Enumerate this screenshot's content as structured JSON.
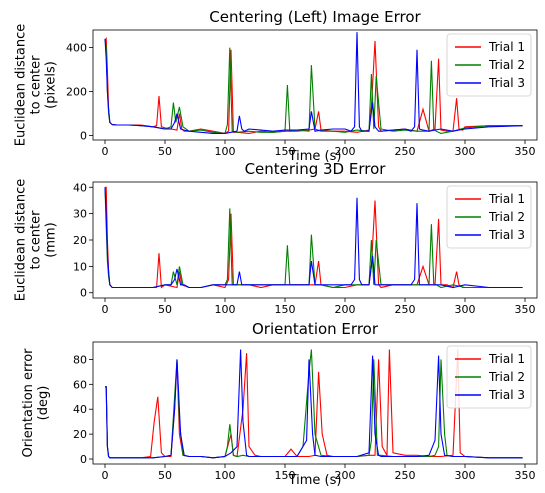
{
  "series_colors": {
    "Trial 1": "#ff0000",
    "Trial 2": "#008000",
    "Trial 3": "#0000ff"
  },
  "chart_data": [
    {
      "type": "line",
      "title": "Centering (Left) Image Error",
      "xlabel": "Time (s)",
      "ylabel": [
        "Euclidean distance",
        "to center",
        "(pixels)"
      ],
      "xlim": [
        -10,
        360
      ],
      "ylim": [
        -20,
        480
      ],
      "xticks": [
        0,
        50,
        100,
        150,
        200,
        250,
        300,
        350
      ],
      "yticks": [
        0,
        200,
        400
      ],
      "legend": "top-right",
      "series": [
        {
          "name": "Trial 1",
          "x": [
            0,
            1,
            2,
            3,
            4,
            6,
            10,
            20,
            30,
            40,
            43,
            45,
            47,
            50,
            55,
            60,
            62,
            64,
            66,
            70,
            75,
            80,
            90,
            100,
            103,
            105,
            107,
            110,
            120,
            130,
            140,
            150,
            160,
            170,
            175,
            178,
            180,
            190,
            200,
            210,
            215,
            220,
            222,
            225,
            228,
            230,
            240,
            250,
            260,
            265,
            270,
            275,
            278,
            280,
            285,
            290,
            293,
            295,
            298,
            300,
            320,
            348
          ],
          "y": [
            430,
            440,
            300,
            120,
            60,
            50,
            48,
            48,
            48,
            40,
            45,
            180,
            40,
            35,
            30,
            25,
            100,
            30,
            20,
            20,
            25,
            30,
            20,
            10,
            20,
            390,
            15,
            15,
            10,
            20,
            15,
            20,
            20,
            25,
            30,
            110,
            25,
            20,
            20,
            15,
            20,
            25,
            130,
            430,
            40,
            20,
            25,
            30,
            20,
            120,
            20,
            30,
            350,
            25,
            20,
            20,
            170,
            30,
            25,
            40,
            45,
            45
          ]
        },
        {
          "name": "Trial 2",
          "x": [
            0,
            1,
            2,
            3,
            4,
            6,
            10,
            20,
            30,
            40,
            50,
            55,
            57,
            59,
            62,
            65,
            70,
            80,
            90,
            100,
            102,
            104,
            106,
            110,
            120,
            130,
            140,
            150,
            152,
            154,
            160,
            170,
            172,
            175,
            180,
            190,
            200,
            210,
            220,
            222,
            224,
            226,
            230,
            240,
            250,
            260,
            270,
            272,
            274,
            276,
            280,
            290,
            300,
            320,
            348
          ],
          "y": [
            440,
            400,
            200,
            100,
            60,
            50,
            48,
            48,
            45,
            40,
            30,
            40,
            150,
            60,
            130,
            40,
            20,
            25,
            15,
            10,
            50,
            400,
            20,
            15,
            20,
            15,
            15,
            20,
            230,
            20,
            25,
            20,
            320,
            30,
            20,
            20,
            15,
            25,
            20,
            280,
            30,
            270,
            30,
            20,
            25,
            20,
            20,
            340,
            30,
            20,
            10,
            20,
            35,
            45,
            45
          ]
        },
        {
          "name": "Trial 3",
          "x": [
            0,
            1,
            2,
            3,
            4,
            6,
            10,
            20,
            30,
            40,
            50,
            55,
            58,
            60,
            63,
            66,
            70,
            80,
            90,
            100,
            110,
            112,
            114,
            116,
            120,
            130,
            140,
            150,
            160,
            170,
            172,
            175,
            180,
            190,
            200,
            205,
            208,
            210,
            212,
            214,
            220,
            223,
            225,
            228,
            230,
            240,
            250,
            255,
            258,
            260,
            262,
            265,
            270,
            280,
            290,
            300,
            320,
            348
          ],
          "y": [
            440,
            350,
            200,
            120,
            60,
            50,
            48,
            48,
            45,
            40,
            30,
            30,
            60,
            100,
            30,
            25,
            20,
            15,
            10,
            10,
            20,
            90,
            30,
            20,
            30,
            25,
            20,
            25,
            25,
            30,
            110,
            20,
            25,
            30,
            30,
            20,
            40,
            470,
            40,
            20,
            20,
            150,
            40,
            20,
            20,
            25,
            30,
            20,
            40,
            390,
            30,
            25,
            20,
            30,
            20,
            30,
            40,
            45
          ]
        }
      ]
    },
    {
      "type": "line",
      "title": "Centering 3D Error",
      "xlabel": "",
      "ylabel": [
        "Euclidean distance",
        "to center",
        "(mm)"
      ],
      "xlim": [
        -10,
        360
      ],
      "ylim": [
        -2,
        42
      ],
      "xticks": [
        0,
        50,
        100,
        150,
        200,
        250,
        300,
        350
      ],
      "yticks": [
        0,
        10,
        20,
        30,
        40
      ],
      "legend": "top-right",
      "series": [
        {
          "name": "Trial 1",
          "x": [
            0,
            1,
            2,
            3,
            4,
            6,
            10,
            20,
            30,
            40,
            43,
            45,
            47,
            50,
            60,
            62,
            64,
            70,
            80,
            90,
            100,
            103,
            105,
            107,
            110,
            120,
            130,
            140,
            150,
            160,
            170,
            175,
            178,
            180,
            190,
            200,
            210,
            215,
            220,
            222,
            225,
            228,
            230,
            240,
            250,
            260,
            265,
            270,
            275,
            278,
            280,
            285,
            290,
            293,
            295,
            298,
            300,
            320,
            348
          ],
          "y": [
            40,
            40,
            20,
            8,
            3,
            2,
            2,
            2,
            2,
            2,
            2,
            15,
            2,
            3,
            2,
            8,
            3,
            2,
            2,
            3,
            2,
            5,
            30,
            3,
            3,
            3,
            2,
            3,
            3,
            3,
            3,
            3,
            12,
            3,
            2,
            2,
            3,
            3,
            3,
            10,
            35,
            3,
            2,
            3,
            3,
            3,
            10,
            3,
            3,
            28,
            3,
            3,
            2,
            8,
            3,
            2,
            2,
            2,
            2
          ]
        },
        {
          "name": "Trial 2",
          "x": [
            0,
            1,
            2,
            3,
            4,
            6,
            10,
            20,
            30,
            40,
            50,
            55,
            57,
            60,
            62,
            65,
            70,
            80,
            90,
            100,
            102,
            104,
            106,
            110,
            120,
            130,
            140,
            150,
            152,
            154,
            160,
            170,
            172,
            175,
            180,
            190,
            200,
            210,
            220,
            222,
            224,
            226,
            230,
            240,
            250,
            260,
            270,
            272,
            274,
            276,
            280,
            290,
            300,
            320,
            348
          ],
          "y": [
            40,
            25,
            12,
            6,
            3,
            2,
            2,
            2,
            2,
            2,
            3,
            3,
            8,
            3,
            10,
            3,
            2,
            2,
            3,
            3,
            5,
            32,
            3,
            3,
            3,
            3,
            3,
            3,
            18,
            3,
            3,
            3,
            22,
            3,
            3,
            2,
            3,
            3,
            3,
            20,
            3,
            20,
            3,
            3,
            3,
            3,
            3,
            26,
            3,
            3,
            2,
            3,
            2,
            2,
            2
          ]
        },
        {
          "name": "Trial 3",
          "x": [
            0,
            1,
            2,
            3,
            4,
            6,
            10,
            20,
            30,
            40,
            50,
            55,
            58,
            60,
            63,
            66,
            70,
            80,
            90,
            100,
            110,
            112,
            114,
            116,
            120,
            130,
            140,
            150,
            160,
            170,
            172,
            175,
            180,
            190,
            200,
            205,
            208,
            210,
            212,
            214,
            220,
            223,
            225,
            228,
            230,
            240,
            250,
            255,
            258,
            260,
            262,
            265,
            270,
            280,
            290,
            300,
            320,
            348
          ],
          "y": [
            40,
            30,
            15,
            8,
            3,
            2,
            2,
            2,
            2,
            2,
            3,
            3,
            5,
            9,
            3,
            3,
            2,
            2,
            3,
            3,
            3,
            8,
            3,
            3,
            3,
            3,
            3,
            3,
            3,
            3,
            12,
            3,
            3,
            3,
            3,
            3,
            5,
            36,
            5,
            3,
            3,
            14,
            3,
            3,
            3,
            3,
            3,
            3,
            5,
            34,
            3,
            3,
            3,
            3,
            2,
            3,
            2,
            2
          ]
        }
      ]
    },
    {
      "type": "line",
      "title": "Orientation Error",
      "xlabel": "Time (s)",
      "ylabel": [
        "Orientation error",
        "(deg)"
      ],
      "xlim": [
        -10,
        360
      ],
      "ylim": [
        -4,
        94
      ],
      "xticks": [
        0,
        50,
        100,
        150,
        200,
        250,
        300,
        350
      ],
      "yticks": [
        0,
        20,
        40,
        60,
        80
      ],
      "legend": "top-right",
      "series": [
        {
          "name": "Trial 1",
          "x": [
            0,
            1,
            2,
            3,
            4,
            6,
            10,
            20,
            30,
            38,
            41,
            44,
            47,
            50,
            55,
            58,
            60,
            62,
            65,
            70,
            80,
            90,
            100,
            105,
            107,
            110,
            115,
            118,
            120,
            125,
            130,
            140,
            150,
            155,
            160,
            170,
            175,
            178,
            181,
            185,
            190,
            200,
            210,
            220,
            225,
            228,
            231,
            235,
            237,
            240,
            250,
            260,
            270,
            280,
            290,
            294,
            296,
            300,
            320,
            348
          ],
          "y": [
            58,
            58,
            10,
            2,
            1,
            1,
            1,
            1,
            1,
            2,
            30,
            50,
            5,
            2,
            2,
            40,
            78,
            20,
            3,
            2,
            2,
            1,
            2,
            20,
            3,
            2,
            40,
            85,
            10,
            3,
            2,
            2,
            2,
            8,
            2,
            2,
            3,
            70,
            20,
            3,
            2,
            2,
            2,
            3,
            3,
            80,
            10,
            3,
            88,
            5,
            3,
            3,
            2,
            2,
            3,
            88,
            5,
            2,
            1,
            1
          ]
        },
        {
          "name": "Trial 2",
          "x": [
            0,
            1,
            2,
            3,
            4,
            6,
            10,
            20,
            30,
            40,
            50,
            55,
            58,
            60,
            62,
            65,
            70,
            80,
            90,
            100,
            102,
            104,
            107,
            110,
            115,
            120,
            130,
            140,
            150,
            160,
            165,
            170,
            172,
            175,
            180,
            190,
            200,
            210,
            220,
            222,
            224,
            227,
            230,
            240,
            250,
            260,
            270,
            275,
            278,
            280,
            283,
            285,
            290,
            300,
            320,
            348
          ],
          "y": [
            58,
            58,
            10,
            2,
            1,
            1,
            1,
            1,
            1,
            1,
            2,
            3,
            50,
            80,
            30,
            3,
            2,
            2,
            1,
            2,
            10,
            28,
            3,
            2,
            3,
            2,
            2,
            2,
            2,
            2,
            10,
            70,
            88,
            20,
            3,
            2,
            2,
            2,
            3,
            15,
            80,
            3,
            3,
            2,
            2,
            2,
            2,
            3,
            10,
            80,
            20,
            3,
            2,
            2,
            1,
            1
          ]
        },
        {
          "name": "Trial 3",
          "x": [
            0,
            1,
            2,
            3,
            4,
            6,
            10,
            20,
            30,
            40,
            50,
            55,
            58,
            60,
            63,
            66,
            70,
            80,
            90,
            100,
            105,
            110,
            113,
            115,
            118,
            120,
            130,
            140,
            150,
            160,
            168,
            170,
            173,
            175,
            180,
            190,
            200,
            210,
            220,
            223,
            225,
            228,
            230,
            240,
            250,
            260,
            270,
            275,
            278,
            280,
            283,
            290,
            300,
            320,
            348
          ],
          "y": [
            58,
            58,
            10,
            2,
            1,
            1,
            1,
            1,
            1,
            1,
            2,
            3,
            40,
            80,
            20,
            3,
            2,
            2,
            1,
            2,
            5,
            10,
            88,
            30,
            3,
            2,
            2,
            2,
            2,
            2,
            15,
            80,
            20,
            3,
            2,
            2,
            2,
            2,
            5,
            83,
            20,
            3,
            2,
            2,
            2,
            2,
            3,
            15,
            83,
            20,
            3,
            2,
            2,
            1,
            1
          ]
        }
      ]
    }
  ]
}
